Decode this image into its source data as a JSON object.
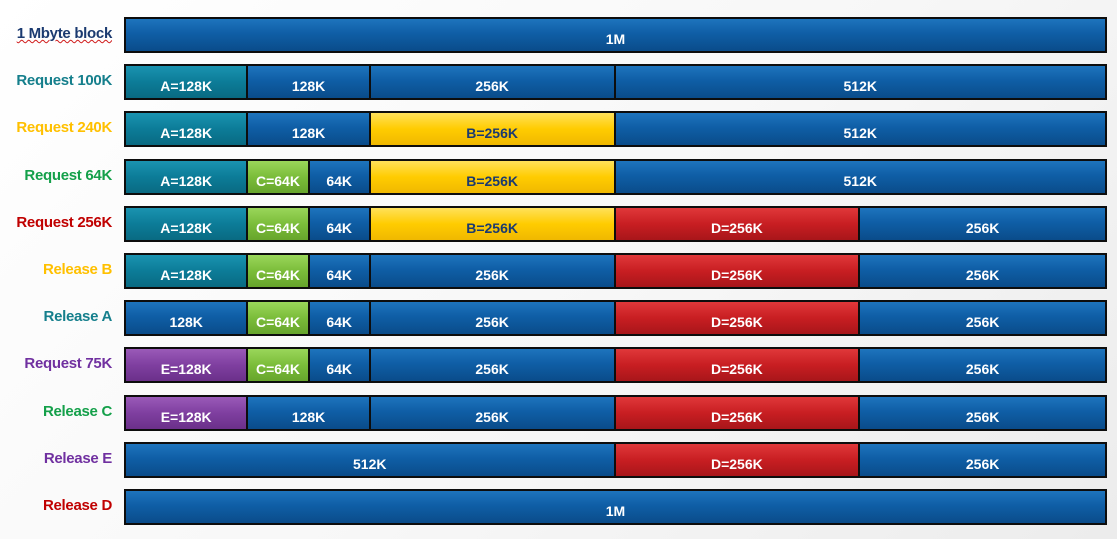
{
  "rows": [
    {
      "label": "1 Mbyte block",
      "label_color": "#1b3a70",
      "segments": [
        {
          "text": "1M",
          "type": "free",
          "size": 1024
        }
      ]
    },
    {
      "label": "Request 100K",
      "label_color": "#157f8c",
      "segments": [
        {
          "text": "A=128K",
          "type": "a",
          "size": 128
        },
        {
          "text": "128K",
          "type": "free",
          "size": 128
        },
        {
          "text": "256K",
          "type": "free",
          "size": 256
        },
        {
          "text": "512K",
          "type": "free",
          "size": 512
        }
      ]
    },
    {
      "label": "Request 240K",
      "label_color": "#ffc000",
      "segments": [
        {
          "text": "A=128K",
          "type": "a",
          "size": 128
        },
        {
          "text": "128K",
          "type": "free",
          "size": 128
        },
        {
          "text": "B=256K",
          "type": "b",
          "size": 256
        },
        {
          "text": "512K",
          "type": "free",
          "size": 512
        }
      ]
    },
    {
      "label": "Request 64K",
      "label_color": "#14a04a",
      "segments": [
        {
          "text": "A=128K",
          "type": "a",
          "size": 128
        },
        {
          "text": "C=64K",
          "type": "c",
          "size": 64
        },
        {
          "text": "64K",
          "type": "free",
          "size": 64
        },
        {
          "text": "B=256K",
          "type": "b",
          "size": 256
        },
        {
          "text": "512K",
          "type": "free",
          "size": 512
        }
      ]
    },
    {
      "label": "Request 256K",
      "label_color": "#c00000",
      "segments": [
        {
          "text": "A=128K",
          "type": "a",
          "size": 128
        },
        {
          "text": "C=64K",
          "type": "c",
          "size": 64
        },
        {
          "text": "64K",
          "type": "free",
          "size": 64
        },
        {
          "text": "B=256K",
          "type": "b",
          "size": 256
        },
        {
          "text": "D=256K",
          "type": "d",
          "size": 256
        },
        {
          "text": "256K",
          "type": "free",
          "size": 256
        }
      ]
    },
    {
      "label": "Release B",
      "label_color": "#ffc000",
      "segments": [
        {
          "text": "A=128K",
          "type": "a",
          "size": 128
        },
        {
          "text": "C=64K",
          "type": "c",
          "size": 64
        },
        {
          "text": "64K",
          "type": "free",
          "size": 64
        },
        {
          "text": "256K",
          "type": "free",
          "size": 256
        },
        {
          "text": "D=256K",
          "type": "d",
          "size": 256
        },
        {
          "text": "256K",
          "type": "free",
          "size": 256
        }
      ]
    },
    {
      "label": "Release A",
      "label_color": "#157f8c",
      "segments": [
        {
          "text": "128K",
          "type": "free",
          "size": 128
        },
        {
          "text": "C=64K",
          "type": "c",
          "size": 64
        },
        {
          "text": "64K",
          "type": "free",
          "size": 64
        },
        {
          "text": "256K",
          "type": "free",
          "size": 256
        },
        {
          "text": "D=256K",
          "type": "d",
          "size": 256
        },
        {
          "text": "256K",
          "type": "free",
          "size": 256
        }
      ]
    },
    {
      "label": "Request 75K",
      "label_color": "#7030a0",
      "segments": [
        {
          "text": "E=128K",
          "type": "e",
          "size": 128
        },
        {
          "text": "C=64K",
          "type": "c",
          "size": 64
        },
        {
          "text": "64K",
          "type": "free",
          "size": 64
        },
        {
          "text": "256K",
          "type": "free",
          "size": 256
        },
        {
          "text": "D=256K",
          "type": "d",
          "size": 256
        },
        {
          "text": "256K",
          "type": "free",
          "size": 256
        }
      ]
    },
    {
      "label": "Release C",
      "label_color": "#14a04a",
      "segments": [
        {
          "text": "E=128K",
          "type": "e",
          "size": 128
        },
        {
          "text": "128K",
          "type": "free",
          "size": 128
        },
        {
          "text": "256K",
          "type": "free",
          "size": 256
        },
        {
          "text": "D=256K",
          "type": "d",
          "size": 256
        },
        {
          "text": "256K",
          "type": "free",
          "size": 256
        }
      ]
    },
    {
      "label": "Release E",
      "label_color": "#7030a0",
      "segments": [
        {
          "text": "512K",
          "type": "free",
          "size": 512
        },
        {
          "text": "D=256K",
          "type": "d",
          "size": 256
        },
        {
          "text": "256K",
          "type": "free",
          "size": 256
        }
      ]
    },
    {
      "label": "Release D",
      "label_color": "#c00000",
      "segments": [
        {
          "text": "1M",
          "type": "free",
          "size": 1024
        }
      ]
    }
  ]
}
